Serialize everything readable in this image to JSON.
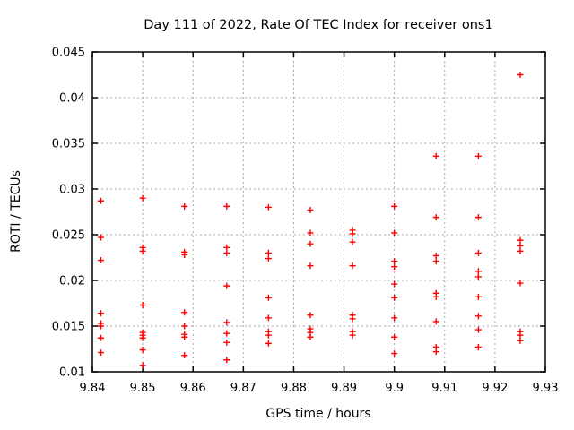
{
  "window": {
    "background": "#ffffff"
  },
  "chart_data": {
    "type": "scatter",
    "title": "Day 111 of 2022, Rate Of TEC Index for receiver ons1",
    "xlabel": "GPS time / hours",
    "ylabel": "ROTI / TECUs",
    "xlim": [
      9.84,
      9.93
    ],
    "ylim": [
      0.01,
      0.045
    ],
    "xticks": [
      9.84,
      9.85,
      9.86,
      9.87,
      9.88,
      9.89,
      9.9,
      9.91,
      9.92,
      9.93
    ],
    "xtick_labels": [
      "9.84",
      "9.85",
      "9.86",
      "9.87",
      "9.88",
      "9.89",
      "9.9",
      "9.91",
      "9.92",
      "9.93"
    ],
    "yticks": [
      0.01,
      0.015,
      0.02,
      0.025,
      0.03,
      0.035,
      0.04,
      0.045
    ],
    "ytick_labels": [
      "0.01",
      "0.015",
      "0.02",
      "0.025",
      "0.03",
      "0.035",
      "0.04",
      "0.045"
    ],
    "grid": true,
    "legend": "none",
    "marker": "plus",
    "marker_color": "#ff0000",
    "grid_color": "#a8a8a8",
    "border_color": "#000000",
    "series": [
      {
        "name": "ROTI",
        "points": [
          [
            9.8417,
            0.0287
          ],
          [
            9.8417,
            0.0247
          ],
          [
            9.8417,
            0.0222
          ],
          [
            9.8417,
            0.0164
          ],
          [
            9.8417,
            0.0153
          ],
          [
            9.8417,
            0.015
          ],
          [
            9.8417,
            0.0137
          ],
          [
            9.8417,
            0.0121
          ],
          [
            9.85,
            0.029
          ],
          [
            9.85,
            0.0236
          ],
          [
            9.85,
            0.0232
          ],
          [
            9.85,
            0.0173
          ],
          [
            9.85,
            0.0143
          ],
          [
            9.85,
            0.014
          ],
          [
            9.85,
            0.0137
          ],
          [
            9.85,
            0.0124
          ],
          [
            9.85,
            0.0107
          ],
          [
            9.8583,
            0.0281
          ],
          [
            9.8583,
            0.0231
          ],
          [
            9.8583,
            0.0228
          ],
          [
            9.8583,
            0.0165
          ],
          [
            9.8583,
            0.015
          ],
          [
            9.8583,
            0.0141
          ],
          [
            9.8583,
            0.0138
          ],
          [
            9.8583,
            0.0118
          ],
          [
            9.8667,
            0.0281
          ],
          [
            9.8667,
            0.0236
          ],
          [
            9.8667,
            0.023
          ],
          [
            9.8667,
            0.0194
          ],
          [
            9.8667,
            0.0154
          ],
          [
            9.8667,
            0.0142
          ],
          [
            9.8667,
            0.0132
          ],
          [
            9.8667,
            0.0113
          ],
          [
            9.875,
            0.028
          ],
          [
            9.875,
            0.023
          ],
          [
            9.875,
            0.0224
          ],
          [
            9.875,
            0.0181
          ],
          [
            9.875,
            0.0159
          ],
          [
            9.875,
            0.0144
          ],
          [
            9.875,
            0.014
          ],
          [
            9.875,
            0.0131
          ],
          [
            9.8833,
            0.0277
          ],
          [
            9.8833,
            0.0252
          ],
          [
            9.8833,
            0.024
          ],
          [
            9.8833,
            0.0216
          ],
          [
            9.8833,
            0.0162
          ],
          [
            9.8833,
            0.0147
          ],
          [
            9.8833,
            0.0143
          ],
          [
            9.8833,
            0.0138
          ],
          [
            9.8917,
            0.0255
          ],
          [
            9.8917,
            0.0251
          ],
          [
            9.8917,
            0.0242
          ],
          [
            9.8917,
            0.0216
          ],
          [
            9.8917,
            0.0162
          ],
          [
            9.8917,
            0.0158
          ],
          [
            9.8917,
            0.0144
          ],
          [
            9.8917,
            0.014
          ],
          [
            9.9,
            0.0281
          ],
          [
            9.9,
            0.0252
          ],
          [
            9.9,
            0.0221
          ],
          [
            9.9,
            0.0215
          ],
          [
            9.9,
            0.0196
          ],
          [
            9.9,
            0.0181
          ],
          [
            9.9,
            0.0159
          ],
          [
            9.9,
            0.0138
          ],
          [
            9.9,
            0.012
          ],
          [
            9.9083,
            0.0336
          ],
          [
            9.9083,
            0.0269
          ],
          [
            9.9083,
            0.0227
          ],
          [
            9.9083,
            0.0221
          ],
          [
            9.9083,
            0.0186
          ],
          [
            9.9083,
            0.0182
          ],
          [
            9.9083,
            0.0155
          ],
          [
            9.9083,
            0.0127
          ],
          [
            9.9083,
            0.0122
          ],
          [
            9.9167,
            0.0336
          ],
          [
            9.9167,
            0.0269
          ],
          [
            9.9167,
            0.023
          ],
          [
            9.9167,
            0.021
          ],
          [
            9.9167,
            0.0204
          ],
          [
            9.9167,
            0.0182
          ],
          [
            9.9167,
            0.0161
          ],
          [
            9.9167,
            0.0146
          ],
          [
            9.9167,
            0.0127
          ],
          [
            9.925,
            0.0425
          ],
          [
            9.925,
            0.0244
          ],
          [
            9.925,
            0.0238
          ],
          [
            9.925,
            0.0232
          ],
          [
            9.925,
            0.0197
          ],
          [
            9.925,
            0.0144
          ],
          [
            9.925,
            0.014
          ],
          [
            9.925,
            0.0134
          ]
        ]
      }
    ]
  }
}
